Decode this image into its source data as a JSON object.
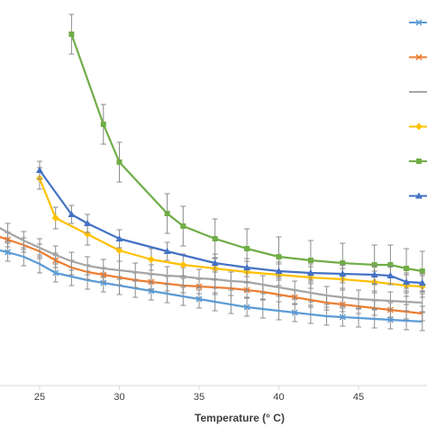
{
  "chart_data": {
    "type": "line",
    "title": "",
    "xlabel": "Temperature (° C)",
    "ylabel": "",
    "xlim": [
      20.5,
      49
    ],
    "ylim": [
      0,
      470
    ],
    "x_ticks": [
      25,
      30,
      35,
      40,
      45
    ],
    "grid": false,
    "legend_position": "top-right",
    "series": [
      {
        "color": "#5B9BD5",
        "marker": "x",
        "points": [
          [
            19.5,
            262
          ],
          [
            21,
            270
          ],
          [
            22,
            276
          ],
          [
            23,
            280
          ],
          [
            24,
            285
          ],
          [
            25,
            293
          ],
          [
            26,
            303
          ],
          [
            27,
            307
          ],
          [
            28,
            311
          ],
          [
            29,
            314
          ],
          [
            30,
            317
          ],
          [
            31,
            320
          ],
          [
            32,
            323
          ],
          [
            33,
            326
          ],
          [
            34,
            329
          ],
          [
            35,
            332
          ],
          [
            36,
            335
          ],
          [
            37,
            338
          ],
          [
            38,
            341
          ],
          [
            39,
            343
          ],
          [
            40,
            345
          ],
          [
            41,
            347
          ],
          [
            42,
            349
          ],
          [
            43,
            351
          ],
          [
            44,
            352
          ],
          [
            45,
            353
          ],
          [
            46,
            354
          ],
          [
            47,
            355
          ],
          [
            48,
            356
          ],
          [
            49,
            357
          ]
        ],
        "err": 10
      },
      {
        "color": "#ED7D31",
        "marker": "x",
        "points": [
          [
            19.5,
            245
          ],
          [
            21,
            253
          ],
          [
            22,
            260
          ],
          [
            23,
            266
          ],
          [
            24,
            272
          ],
          [
            25,
            279
          ],
          [
            26,
            289
          ],
          [
            27,
            297
          ],
          [
            28,
            302
          ],
          [
            29,
            305
          ],
          [
            30,
            308
          ],
          [
            31,
            311
          ],
          [
            32,
            313
          ],
          [
            33,
            315
          ],
          [
            34,
            317
          ],
          [
            35,
            318
          ],
          [
            36,
            319
          ],
          [
            37,
            320
          ],
          [
            38,
            322
          ],
          [
            39,
            324
          ],
          [
            40,
            327
          ],
          [
            41,
            330
          ],
          [
            42,
            333
          ],
          [
            43,
            336
          ],
          [
            44,
            338
          ],
          [
            45,
            340
          ],
          [
            46,
            342
          ],
          [
            47,
            344
          ],
          [
            48,
            346
          ],
          [
            49,
            348
          ]
        ],
        "err": 8
      },
      {
        "color": "#A5A5A5",
        "marker": "line",
        "points": [
          [
            19.5,
            226
          ],
          [
            21,
            238
          ],
          [
            22,
            248
          ],
          [
            23,
            258
          ],
          [
            24,
            267
          ],
          [
            25,
            275
          ],
          [
            26,
            283
          ],
          [
            27,
            290
          ],
          [
            28,
            295
          ],
          [
            29,
            298
          ],
          [
            30,
            300
          ],
          [
            31,
            302
          ],
          [
            32,
            304
          ],
          [
            33,
            306
          ],
          [
            34,
            307
          ],
          [
            35,
            309
          ],
          [
            36,
            310
          ],
          [
            37,
            312
          ],
          [
            38,
            313
          ],
          [
            39,
            316
          ],
          [
            40,
            319
          ],
          [
            41,
            322
          ],
          [
            42,
            325
          ],
          [
            43,
            328
          ],
          [
            44,
            330
          ],
          [
            45,
            332
          ],
          [
            46,
            333
          ],
          [
            47,
            334
          ],
          [
            48,
            335
          ],
          [
            49,
            336
          ]
        ],
        "err": 10
      },
      {
        "color": "#FFC000",
        "marker": "diamond",
        "points": [
          [
            25,
            198
          ],
          [
            26,
            242
          ],
          [
            28,
            260
          ],
          [
            30,
            278
          ],
          [
            32,
            288
          ],
          [
            34,
            294
          ],
          [
            36,
            298
          ],
          [
            38,
            302
          ],
          [
            40,
            305
          ],
          [
            42,
            308
          ],
          [
            44,
            310
          ],
          [
            46,
            313
          ],
          [
            48,
            317
          ],
          [
            49,
            318
          ]
        ],
        "err": 12
      },
      {
        "color": "#70AD47",
        "marker": "square",
        "points": [
          [
            27,
            38
          ],
          [
            29,
            138
          ],
          [
            30,
            180
          ],
          [
            33,
            237
          ],
          [
            34,
            251
          ],
          [
            36,
            265
          ],
          [
            38,
            276
          ],
          [
            40,
            285
          ],
          [
            42,
            289
          ],
          [
            44,
            292
          ],
          [
            46,
            294
          ],
          [
            47,
            294
          ],
          [
            48,
            298
          ],
          [
            49,
            301
          ]
        ],
        "err": 22
      },
      {
        "color": "#4472C4",
        "marker": "triangle",
        "points": [
          [
            25,
            189
          ],
          [
            27,
            238
          ],
          [
            28,
            248
          ],
          [
            30,
            265
          ],
          [
            33,
            279
          ],
          [
            36,
            292
          ],
          [
            38,
            297
          ],
          [
            40,
            301
          ],
          [
            42,
            303
          ],
          [
            44,
            304
          ],
          [
            46,
            305
          ],
          [
            47,
            306
          ],
          [
            48,
            313
          ],
          [
            49,
            314
          ]
        ],
        "err": 10
      }
    ]
  }
}
